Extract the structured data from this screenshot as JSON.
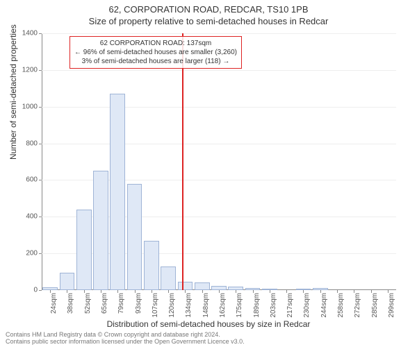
{
  "header": {
    "address": "62, CORPORATION ROAD, REDCAR, TS10 1PB",
    "subtitle": "Size of property relative to semi-detached houses in Redcar"
  },
  "chart": {
    "type": "histogram",
    "ylabel": "Number of semi-detached properties",
    "xlabel": "Distribution of semi-detached houses by size in Redcar",
    "background_color": "#ffffff",
    "grid_color": "#eeeeee",
    "axis_color": "#888888",
    "bar_fill": "#dfe8f6",
    "bar_stroke": "#9fb4d6",
    "marker_color": "#dd2222",
    "ylim": [
      0,
      1400
    ],
    "ytick_step": 200,
    "xticks": [
      "24sqm",
      "38sqm",
      "52sqm",
      "65sqm",
      "79sqm",
      "93sqm",
      "107sqm",
      "120sqm",
      "134sqm",
      "148sqm",
      "162sqm",
      "175sqm",
      "189sqm",
      "203sqm",
      "217sqm",
      "230sqm",
      "244sqm",
      "258sqm",
      "272sqm",
      "285sqm",
      "299sqm"
    ],
    "values": [
      15,
      95,
      440,
      650,
      1070,
      580,
      270,
      130,
      45,
      40,
      22,
      18,
      10,
      8,
      0,
      5,
      10,
      0,
      0,
      0,
      0
    ],
    "bar_width": 0.9,
    "marker_index": 8.3,
    "annotation": {
      "line1": "62 CORPORATION ROAD: 137sqm",
      "line2": "← 96% of semi-detached houses are smaller (3,260)",
      "line3": "3% of semi-detached houses are larger (118) →"
    }
  },
  "footer": {
    "line1": "Contains HM Land Registry data © Crown copyright and database right 2024.",
    "line2": "Contains public sector information licensed under the Open Government Licence v3.0."
  }
}
